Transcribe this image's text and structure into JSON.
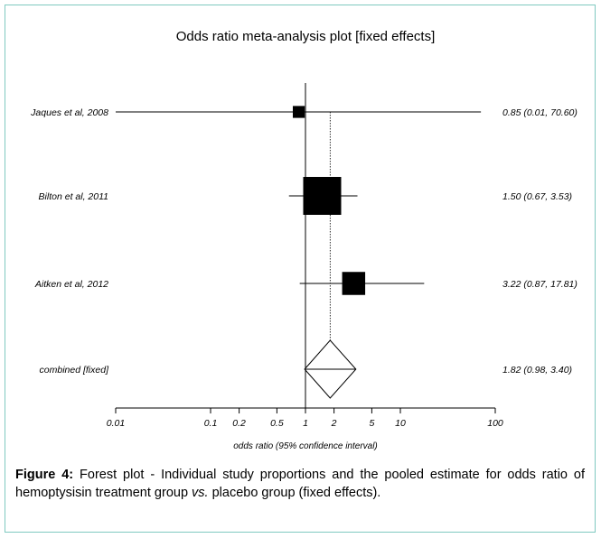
{
  "chart_data": {
    "type": "forest",
    "title": "Odds ratio meta-analysis plot [fixed effects]",
    "xlabel": "odds ratio (95% confidence interval)",
    "xscale": "log",
    "xlim": [
      0.01,
      100
    ],
    "xticks": [
      0.01,
      0.1,
      0.2,
      0.5,
      1,
      2,
      5,
      10,
      100
    ],
    "xtick_labels": [
      "0.01",
      "0.1",
      "0.2",
      "0.5",
      "1",
      "2",
      "5",
      "10",
      "100"
    ],
    "studies": [
      {
        "name": "Jaques et al, 2008",
        "or": 0.85,
        "lower": 0.01,
        "upper": 70.6,
        "weight": 0.03,
        "label": "0.85 (0.01, 70.60)"
      },
      {
        "name": "Bilton et al, 2011",
        "or": 1.5,
        "lower": 0.67,
        "upper": 3.53,
        "weight": 0.75,
        "label": "1.50 (0.67, 3.53)"
      },
      {
        "name": "Aitken et al, 2012",
        "or": 3.22,
        "lower": 0.87,
        "upper": 17.81,
        "weight": 0.22,
        "label": "3.22 (0.87, 17.81)"
      }
    ],
    "combined": {
      "name": "combined [fixed]",
      "or": 1.82,
      "lower": 0.98,
      "upper": 3.4,
      "label": "1.82 (0.98, 3.40)"
    }
  },
  "caption": {
    "label": "Figure 4:",
    "text_1": " Forest plot - Individual study proportions and the pooled estimate for odds ratio of hemoptysisin treatment group ",
    "vs": "vs.",
    "text_2": " placebo group (fixed effects)."
  }
}
